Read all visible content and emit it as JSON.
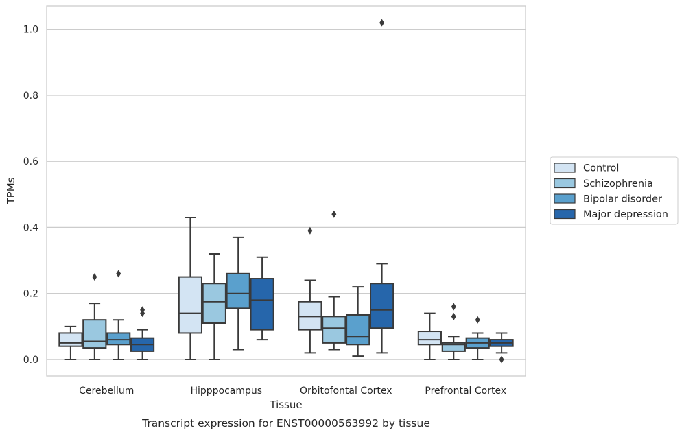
{
  "caption": "Transcript expression for ENST00000563992 by tissue",
  "chart_data": {
    "type": "box",
    "title": "",
    "xlabel": "Tissue",
    "ylabel": "TPMs",
    "ylim": [
      -0.05,
      1.07
    ],
    "yticks": [
      0.0,
      0.2,
      0.4,
      0.6,
      0.8,
      1.0
    ],
    "ytick_labels": [
      "0.0",
      "0.2",
      "0.4",
      "0.6",
      "0.8",
      "1.0"
    ],
    "grid": "horizontal",
    "legend_position": "right",
    "categories": [
      "Cerebellum",
      "Hipppocampus",
      "Orbitofontal Cortex",
      "Prefrontal Cortex"
    ],
    "series": [
      {
        "name": "Control",
        "color": "#d3e4f3",
        "boxes": [
          {
            "whislo": 0.0,
            "q1": 0.04,
            "med": 0.05,
            "q3": 0.08,
            "whishi": 0.1,
            "fliers": []
          },
          {
            "whislo": 0.0,
            "q1": 0.08,
            "med": 0.14,
            "q3": 0.25,
            "whishi": 0.43,
            "fliers": []
          },
          {
            "whislo": 0.02,
            "q1": 0.09,
            "med": 0.13,
            "q3": 0.175,
            "whishi": 0.24,
            "fliers": [
              0.39
            ]
          },
          {
            "whislo": 0.0,
            "q1": 0.045,
            "med": 0.06,
            "q3": 0.085,
            "whishi": 0.14,
            "fliers": []
          }
        ]
      },
      {
        "name": "Schizophrenia",
        "color": "#9ac8e0",
        "boxes": [
          {
            "whislo": 0.0,
            "q1": 0.035,
            "med": 0.055,
            "q3": 0.12,
            "whishi": 0.17,
            "fliers": [
              0.25
            ]
          },
          {
            "whislo": 0.0,
            "q1": 0.11,
            "med": 0.175,
            "q3": 0.23,
            "whishi": 0.32,
            "fliers": []
          },
          {
            "whislo": 0.03,
            "q1": 0.05,
            "med": 0.095,
            "q3": 0.13,
            "whishi": 0.19,
            "fliers": [
              0.44
            ]
          },
          {
            "whislo": 0.0,
            "q1": 0.025,
            "med": 0.045,
            "q3": 0.05,
            "whishi": 0.07,
            "fliers": [
              0.16,
              0.13
            ]
          }
        ]
      },
      {
        "name": "Bipolar disorder",
        "color": "#5aa0cd",
        "boxes": [
          {
            "whislo": 0.0,
            "q1": 0.045,
            "med": 0.06,
            "q3": 0.08,
            "whishi": 0.12,
            "fliers": [
              0.26
            ]
          },
          {
            "whislo": 0.03,
            "q1": 0.155,
            "med": 0.2,
            "q3": 0.26,
            "whishi": 0.37,
            "fliers": []
          },
          {
            "whislo": 0.01,
            "q1": 0.045,
            "med": 0.07,
            "q3": 0.135,
            "whishi": 0.22,
            "fliers": []
          },
          {
            "whislo": 0.0,
            "q1": 0.035,
            "med": 0.05,
            "q3": 0.065,
            "whishi": 0.08,
            "fliers": [
              0.12
            ]
          }
        ]
      },
      {
        "name": "Major depression",
        "color": "#2666ab",
        "boxes": [
          {
            "whislo": 0.0,
            "q1": 0.025,
            "med": 0.045,
            "q3": 0.065,
            "whishi": 0.09,
            "fliers": [
              0.15,
              0.14
            ]
          },
          {
            "whislo": 0.06,
            "q1": 0.09,
            "med": 0.18,
            "q3": 0.245,
            "whishi": 0.31,
            "fliers": []
          },
          {
            "whislo": 0.02,
            "q1": 0.095,
            "med": 0.15,
            "q3": 0.23,
            "whishi": 0.29,
            "fliers": [
              1.02
            ]
          },
          {
            "whislo": 0.02,
            "q1": 0.04,
            "med": 0.05,
            "q3": 0.06,
            "whishi": 0.08,
            "fliers": [
              0.0
            ]
          }
        ]
      }
    ]
  }
}
